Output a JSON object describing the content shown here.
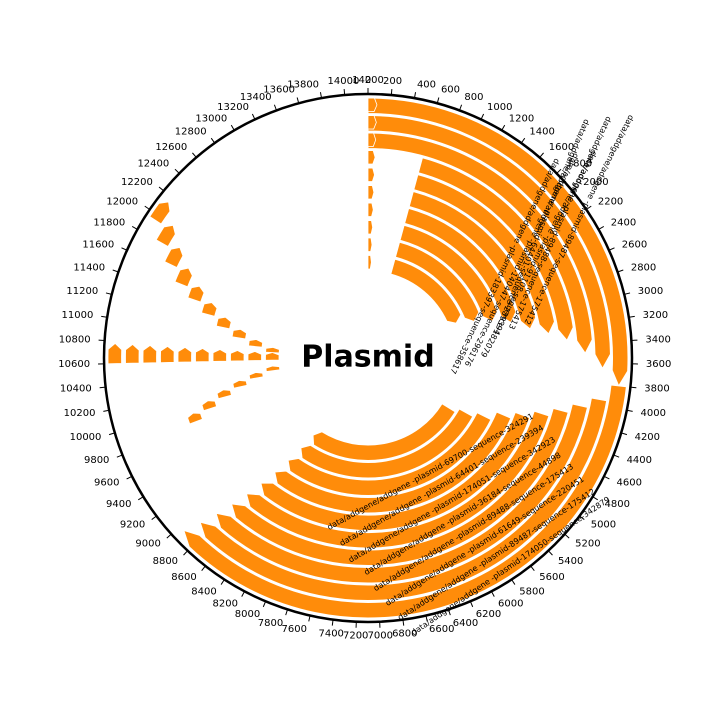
{
  "title": "Plasmid",
  "colors": {
    "feature_fill": "#ff8c0a",
    "feature_stroke": "#ffffff",
    "axis": "#000000",
    "background": "#ffffff"
  },
  "axis": {
    "total_length": 14200,
    "tick_step": 200,
    "tick_labels": [
      "0",
      "200",
      "400",
      "600",
      "800",
      "1000",
      "1200",
      "1400",
      "1600",
      "1800",
      "2000",
      "2200",
      "2400",
      "2600",
      "2800",
      "3000",
      "3200",
      "3400",
      "3600",
      "3800",
      "4000",
      "4200",
      "4400",
      "4600",
      "4800",
      "5000",
      "5200",
      "5400",
      "5600",
      "5800",
      "6000",
      "6200",
      "6400",
      "6600",
      "6800",
      "7000",
      "7200",
      "7400",
      "7600",
      "7800",
      "8000",
      "8200",
      "8400",
      "8600",
      "8800",
      "9000",
      "9200",
      "9400",
      "9600",
      "9800",
      "10000",
      "10200",
      "10400",
      "10600",
      "10800",
      "11000",
      "11200",
      "11400",
      "11600",
      "11800",
      "12000",
      "12200",
      "12400",
      "12600",
      "12800",
      "13000",
      "13200",
      "13400",
      "13600",
      "13800",
      "14000",
      "14200"
    ]
  },
  "features": [
    {
      "track": 0,
      "start": 0,
      "end": 3800,
      "prefix": "data/addgene/addgene",
      "label": "-plasmid-89487-sequence-175412"
    },
    {
      "track": 1,
      "start": 0,
      "end": 3650,
      "prefix": "data/addgene/addgene",
      "label": "-plasmid-89488-sequence-175413"
    },
    {
      "track": 2,
      "start": 0,
      "end": 3500,
      "prefix": "data/addgene/addgene",
      "label": "-plasmid-64401-sequence-239394"
    },
    {
      "track": 3,
      "start": 600,
      "end": 3350,
      "prefix": "data/addgene/addgene",
      "label": "-plasmid-91108-sequence-182079"
    },
    {
      "track": 4,
      "start": 600,
      "end": 3250,
      "prefix": "data/addgene/addgene",
      "label": "-plasmid-140447-sequence-296176"
    },
    {
      "track": 5,
      "start": 600,
      "end": 3150,
      "prefix": "data/addgene/addgene",
      "label": "-plasmid-183397-sequence-358617"
    },
    {
      "track": 6,
      "start": 600,
      "end": 3000,
      "prefix": "",
      "label": ""
    },
    {
      "track": 7,
      "start": 600,
      "end": 2900,
      "prefix": "",
      "label": ""
    },
    {
      "track": 8,
      "start": 600,
      "end": 2800,
      "prefix": "",
      "label": ""
    },
    {
      "track": 9,
      "start": 600,
      "end": 2700,
      "prefix": "",
      "label": ""
    },
    {
      "track": 0,
      "start": 3800,
      "end": 8950,
      "prefix": "data/addgene/addgene",
      "label": "-plasmid-174050-sequence-342879"
    },
    {
      "track": 1,
      "start": 3950,
      "end": 8900,
      "prefix": "data/addgene/addgene",
      "label": "-plasmid-89487-sequence-175412"
    },
    {
      "track": 2,
      "start": 4050,
      "end": 8850,
      "prefix": "data/addgene/addgene",
      "label": "-plasmid-61649-sequence-220451"
    },
    {
      "track": 3,
      "start": 4150,
      "end": 8800,
      "prefix": "data/addgene/addgene",
      "label": "-plasmid-89488-sequence-175413"
    },
    {
      "track": 4,
      "start": 4250,
      "end": 8750,
      "prefix": "data/addgene/addgene",
      "label": "-plasmid-36184-sequence-44898"
    },
    {
      "track": 5,
      "start": 4350,
      "end": 8700,
      "prefix": "data/addgene/addgene",
      "label": "-plasmid-174051-sequence-342923"
    },
    {
      "track": 6,
      "start": 4450,
      "end": 8650,
      "prefix": "data/addgene/addgene",
      "label": "-plasmid-64401-sequence-239394"
    },
    {
      "track": 7,
      "start": 4600,
      "end": 8600,
      "prefix": "data/addgene/addgene",
      "label": "-plasmid-69700-sequence-324291"
    },
    {
      "track": 8,
      "start": 4700,
      "end": 8550,
      "prefix": "",
      "label": ""
    },
    {
      "track": 9,
      "start": 4800,
      "end": 8500,
      "prefix": "",
      "label": ""
    }
  ],
  "small_marks": [
    {
      "track": 0,
      "pos": 0,
      "len": 80
    },
    {
      "track": 1,
      "pos": 0,
      "len": 80
    },
    {
      "track": 2,
      "pos": 0,
      "len": 80
    },
    {
      "track": 3,
      "pos": 0,
      "len": 80
    },
    {
      "track": 4,
      "pos": 0,
      "len": 80
    },
    {
      "track": 5,
      "pos": 0,
      "len": 80
    },
    {
      "track": 6,
      "pos": 0,
      "len": 80
    },
    {
      "track": 7,
      "pos": 0,
      "len": 80
    },
    {
      "track": 8,
      "pos": 0,
      "len": 80
    },
    {
      "track": 9,
      "pos": 0,
      "len": 80
    },
    {
      "track": 9,
      "pos": 10600,
      "len": 180
    },
    {
      "track": 8,
      "pos": 10600,
      "len": 180
    },
    {
      "track": 7,
      "pos": 10600,
      "len": 180
    },
    {
      "track": 6,
      "pos": 10600,
      "len": 180
    },
    {
      "track": 5,
      "pos": 10600,
      "len": 180
    },
    {
      "track": 4,
      "pos": 10600,
      "len": 180
    },
    {
      "track": 3,
      "pos": 10600,
      "len": 180
    },
    {
      "track": 2,
      "pos": 10600,
      "len": 180
    },
    {
      "track": 1,
      "pos": 10600,
      "len": 180
    },
    {
      "track": 0,
      "pos": 10600,
      "len": 180
    },
    {
      "track": 0,
      "pos": 11950,
      "len": 200
    },
    {
      "track": 1,
      "pos": 11800,
      "len": 200
    },
    {
      "track": 2,
      "pos": 11650,
      "len": 200
    },
    {
      "track": 3,
      "pos": 11500,
      "len": 200
    },
    {
      "track": 4,
      "pos": 11380,
      "len": 180
    },
    {
      "track": 5,
      "pos": 11250,
      "len": 170
    },
    {
      "track": 6,
      "pos": 11120,
      "len": 160
    },
    {
      "track": 7,
      "pos": 11000,
      "len": 150
    },
    {
      "track": 8,
      "pos": 10880,
      "len": 140
    },
    {
      "track": 9,
      "pos": 10780,
      "len": 120
    },
    {
      "track": 9,
      "pos": 10350,
      "len": 110
    },
    {
      "track": 8,
      "pos": 10250,
      "len": 110
    },
    {
      "track": 7,
      "pos": 10150,
      "len": 110
    },
    {
      "track": 6,
      "pos": 10050,
      "len": 110
    },
    {
      "track": 5,
      "pos": 9950,
      "len": 110
    },
    {
      "track": 4,
      "pos": 9850,
      "len": 110
    }
  ]
}
